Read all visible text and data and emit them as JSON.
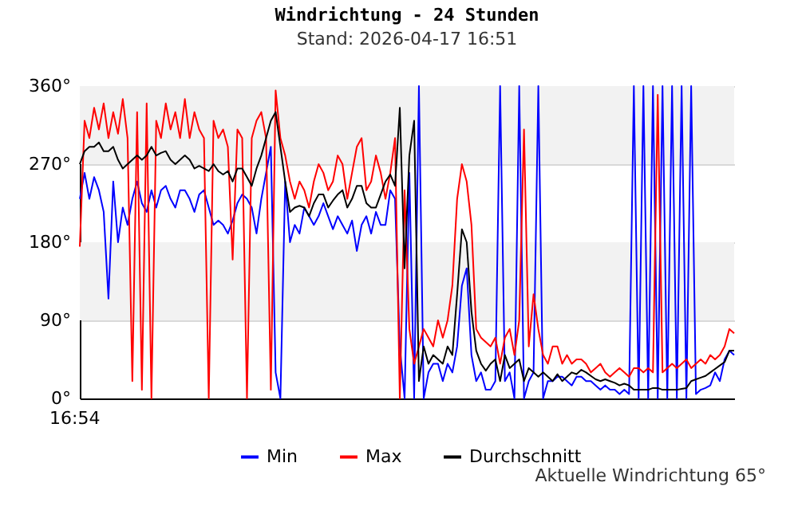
{
  "chart_data": {
    "type": "line",
    "title": "Windrichtung - 24 Stunden",
    "subtitle": "Stand: 2026-04-17 16:51",
    "annotations": [
      "16:54",
      "Aktuelle Windrichtung 65°"
    ],
    "categories": [
      null,
      null,
      null,
      null,
      null,
      null,
      null,
      null,
      null,
      null,
      null,
      null,
      null,
      null,
      null,
      null,
      null,
      null,
      null,
      null,
      null,
      null,
      null,
      null,
      null,
      null,
      null,
      null,
      null,
      null,
      null,
      null,
      null,
      null,
      null,
      null,
      null,
      null,
      null,
      null,
      null,
      null,
      null,
      null,
      null,
      null,
      null,
      null,
      null,
      null,
      null,
      null,
      null,
      null,
      null,
      null,
      null,
      null,
      null,
      null,
      null,
      null,
      null,
      null,
      null,
      null,
      null,
      null,
      null,
      null,
      null,
      null,
      null,
      null,
      null,
      null,
      null,
      null,
      null,
      null,
      null,
      null,
      null,
      null,
      null,
      null,
      null,
      null,
      null,
      null,
      null,
      null,
      null,
      null,
      null,
      null,
      null,
      null,
      null,
      null,
      null,
      null,
      null,
      null,
      null,
      null,
      null,
      null,
      null,
      null,
      null,
      null,
      null,
      null,
      null,
      null,
      null,
      null,
      null,
      null,
      null,
      null,
      null,
      null,
      null,
      null,
      null,
      null,
      null,
      null,
      null,
      null,
      null,
      null,
      null,
      null,
      null,
      null
    ],
    "ylim": [
      0,
      360
    ],
    "yticks": [
      {
        "value": 0,
        "label": "0°"
      },
      {
        "value": 90,
        "label": "90°"
      },
      {
        "value": 180,
        "label": "180°"
      },
      {
        "value": 270,
        "label": "270°"
      },
      {
        "value": 360,
        "label": "360°"
      }
    ],
    "grid": "y",
    "legend": "bottom",
    "marker": "none",
    "line_style": "solid",
    "bands": [
      {
        "axis": "y",
        "from": 90,
        "to": 180,
        "color": "#f2f2f2"
      },
      {
        "axis": "y",
        "from": 270,
        "to": 360,
        "color": "#f2f2f2"
      }
    ],
    "series": [
      {
        "name": "Min",
        "color": "#0000ff",
        "values": [
          230,
          260,
          230,
          255,
          240,
          215,
          115,
          250,
          180,
          220,
          200,
          230,
          250,
          225,
          215,
          240,
          220,
          240,
          245,
          230,
          220,
          240,
          240,
          230,
          215,
          235,
          240,
          220,
          200,
          205,
          200,
          190,
          205,
          225,
          235,
          230,
          220,
          190,
          230,
          260,
          290,
          30,
          0,
          250,
          180,
          200,
          190,
          220,
          210,
          200,
          210,
          225,
          210,
          195,
          210,
          200,
          190,
          205,
          170,
          200,
          210,
          190,
          215,
          200,
          200,
          240,
          230,
          60,
          0,
          260,
          0,
          360,
          0,
          30,
          40,
          40,
          20,
          40,
          30,
          60,
          130,
          150,
          50,
          20,
          30,
          10,
          10,
          20,
          360,
          20,
          30,
          0,
          360,
          0,
          20,
          30,
          360,
          0,
          20,
          20,
          25,
          25,
          20,
          15,
          25,
          25,
          20,
          20,
          15,
          10,
          15,
          10,
          10,
          5,
          10,
          5,
          360,
          0,
          360,
          0,
          360,
          0,
          360,
          0,
          360,
          0,
          360,
          0,
          360,
          5,
          10,
          12,
          15,
          30,
          20,
          45,
          55,
          50
        ]
      },
      {
        "name": "Max",
        "color": "#ff0000",
        "values": [
          175,
          320,
          300,
          335,
          310,
          340,
          300,
          330,
          305,
          345,
          300,
          20,
          330,
          10,
          340,
          0,
          320,
          300,
          340,
          310,
          330,
          300,
          345,
          300,
          330,
          310,
          300,
          0,
          320,
          300,
          310,
          290,
          160,
          310,
          300,
          0,
          300,
          320,
          330,
          300,
          10,
          355,
          300,
          280,
          250,
          230,
          250,
          240,
          220,
          250,
          270,
          260,
          240,
          250,
          280,
          270,
          230,
          260,
          290,
          300,
          240,
          250,
          280,
          260,
          230,
          260,
          300,
          0,
          240,
          80,
          40,
          60,
          80,
          70,
          60,
          90,
          70,
          90,
          130,
          230,
          270,
          250,
          200,
          80,
          70,
          65,
          60,
          70,
          40,
          70,
          80,
          50,
          90,
          310,
          60,
          120,
          80,
          50,
          40,
          60,
          60,
          40,
          50,
          40,
          45,
          45,
          40,
          30,
          35,
          40,
          30,
          25,
          30,
          35,
          30,
          25,
          35,
          35,
          30,
          35,
          30,
          350,
          30,
          35,
          40,
          35,
          40,
          45,
          35,
          40,
          45,
          40,
          50,
          45,
          50,
          60,
          80,
          75
        ]
      },
      {
        "name": "Durchschnitt",
        "color": "#000000",
        "values": [
          270,
          285,
          290,
          290,
          295,
          285,
          285,
          290,
          275,
          265,
          270,
          275,
          280,
          275,
          280,
          290,
          280,
          283,
          285,
          275,
          270,
          275,
          280,
          275,
          265,
          268,
          265,
          262,
          270,
          262,
          258,
          262,
          250,
          265,
          265,
          255,
          245,
          265,
          280,
          300,
          320,
          330,
          290,
          250,
          215,
          220,
          222,
          220,
          210,
          225,
          235,
          235,
          220,
          228,
          235,
          240,
          220,
          230,
          245,
          245,
          225,
          220,
          220,
          235,
          250,
          258,
          245,
          335,
          150,
          280,
          320,
          20,
          60,
          40,
          50,
          45,
          40,
          60,
          50,
          120,
          195,
          180,
          100,
          55,
          40,
          32,
          40,
          45,
          20,
          50,
          35,
          40,
          45,
          20,
          35,
          30,
          25,
          30,
          25,
          20,
          28,
          20,
          25,
          30,
          28,
          33,
          30,
          26,
          22,
          20,
          22,
          20,
          18,
          15,
          17,
          15,
          10,
          10,
          10,
          10,
          12,
          12,
          10,
          10,
          10,
          10,
          11,
          12,
          20,
          22,
          24,
          26,
          30,
          34,
          38,
          42,
          55,
          55
        ]
      }
    ]
  }
}
